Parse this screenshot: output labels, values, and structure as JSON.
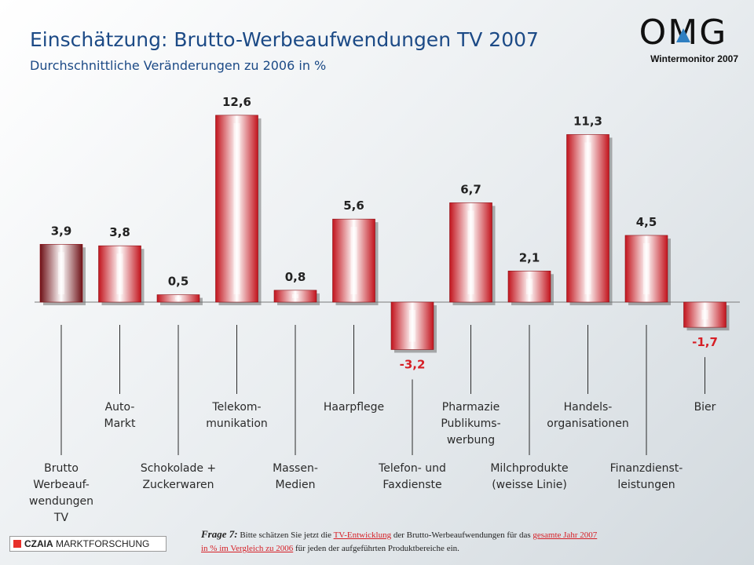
{
  "title": "Einschätzung: Brutto-Werbeaufwendungen TV 2007",
  "subtitle": "Durchschnittliche Veränderungen zu 2006 in %",
  "logo": {
    "text": "OMG",
    "tagline": "Wintermonitor  2007"
  },
  "footer": {
    "brand_bold": "CZAIA",
    "brand_rest": " MARKTFORSCHUNG",
    "question_label": "Frage 7:",
    "question_parts": [
      " Bitte schätzen Sie jetzt die ",
      "TV-Entwicklung",
      " der Brutto-Werbeaufwendungen für das ",
      "gesamte Jahr 2007",
      "in % im Vergleich  zu 2006",
      " für jeden der aufgeführten Produktbereiche ein."
    ]
  },
  "colors": {
    "title": "#1c4a86",
    "bar_edge": "#c2141d",
    "bar_center": "#ffffff",
    "first_bar_edge": "#6e1016",
    "value_positive": "#222222",
    "value_negative": "#d61f26",
    "accent_red": "#d61f26"
  },
  "chart_data": {
    "type": "bar",
    "title": "Einschätzung: Brutto-Werbeaufwendungen TV 2007",
    "subtitle": "Durchschnittliche Veränderungen zu 2006 in %",
    "unit": "%",
    "categories": [
      "Brutto Werbeauf- wendungen TV",
      "Auto- Markt",
      "Schokolade + Zuckerwaren",
      "Telekom- munikation",
      "Massen- Medien",
      "Haarpflege",
      "Telefon- und Faxdienste",
      "Pharmazie Publikums- werbung",
      "Milchprodukte (weisse Linie)",
      "Handels- organisationen",
      "Finanzdienst- leistungen",
      "Bier"
    ],
    "category_lines": [
      [
        "Brutto",
        "Werbeauf-",
        "wendungen",
        "TV"
      ],
      [
        "Auto-",
        "Markt"
      ],
      [
        "Schokolade +",
        "Zuckerwaren"
      ],
      [
        "Telekom-",
        "munikation"
      ],
      [
        "Massen-",
        "Medien"
      ],
      [
        "Haarpflege"
      ],
      [
        "Telefon- und",
        "Faxdienste"
      ],
      [
        "Pharmazie",
        "Publikums-",
        "werbung"
      ],
      [
        "Milchprodukte",
        "(weisse Linie)"
      ],
      [
        "Handels-",
        "organisationen"
      ],
      [
        "Finanzdienst-",
        "leistungen"
      ],
      [
        "Bier"
      ]
    ],
    "label_rows": [
      "low",
      "high",
      "low",
      "high",
      "low",
      "high",
      "low",
      "high",
      "low",
      "high",
      "low",
      "high"
    ],
    "values": [
      3.9,
      3.8,
      0.5,
      12.6,
      0.8,
      5.6,
      -3.2,
      6.7,
      2.1,
      11.3,
      4.5,
      -1.7
    ],
    "value_labels": [
      "3,9",
      "3,8",
      "0,5",
      "12,6",
      "0,8",
      "5,6",
      "-3,2",
      "6,7",
      "2,1",
      "11,3",
      "4,5",
      "-1,7"
    ],
    "grid": false,
    "legend": "none"
  }
}
